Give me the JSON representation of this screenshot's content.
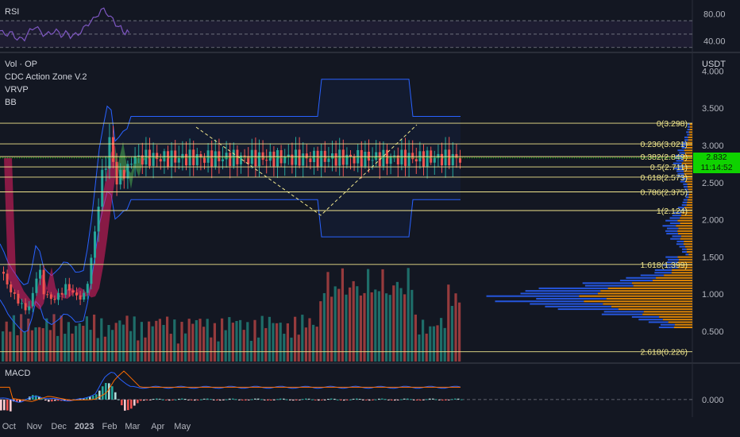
{
  "panels": {
    "rsi": {
      "label": "RSI",
      "ticks": [
        "80.00",
        "40.00"
      ]
    },
    "main": {
      "indicators": [
        "Vol · OP",
        "CDC Action Zone V.2",
        "VRVP",
        "BB"
      ],
      "currency": "USDT",
      "price_ticks": [
        "4.000",
        "3.500",
        "3.000",
        "2.500",
        "2.000",
        "1.500",
        "1.000",
        "0.500"
      ],
      "last_price": "2.832",
      "countdown": "11:14:52"
    },
    "macd": {
      "label": "MACD",
      "ticks": [
        "0.000"
      ]
    }
  },
  "time_axis": [
    "Oct",
    "Nov",
    "Dec",
    "2023",
    "Feb",
    "Mar",
    "Apr",
    "May"
  ],
  "colors": {
    "up": "#26a69a",
    "down": "#ef5350",
    "fib": "#f0e68c",
    "bb": "#2962ff",
    "cloud_up": "#4caf50",
    "cloud_down": "#e91e63",
    "vrvp_up": "#2962ff",
    "vrvp_down": "#ff9800",
    "price_tag": "#0fd200"
  },
  "chart_data": [
    {
      "type": "line",
      "panel": "RSI",
      "ylim": [
        25,
        95
      ],
      "reference_levels": [
        70,
        50,
        30
      ],
      "series": [
        {
          "x": [
            "2022-09-20",
            "2022-10-05",
            "2022-10-20",
            "2022-11-02",
            "2022-11-15",
            "2022-12-01",
            "2022-12-15",
            "2022-12-31",
            "2023-01-15",
            "2023-01-25",
            "2023-02-05",
            "2023-02-12",
            "2023-02-20",
            "2023-02-25"
          ],
          "values": [
            55,
            48,
            42,
            62,
            50,
            52,
            48,
            56,
            78,
            86,
            72,
            58,
            55,
            52
          ]
        }
      ]
    },
    {
      "type": "line",
      "panel": "Price",
      "ylim": [
        0.2,
        4.0
      ],
      "price_ticks": [
        4.0,
        3.5,
        3.0,
        2.5,
        2.0,
        1.5,
        1.0,
        0.5
      ],
      "last_price": 2.832,
      "fibonacci": [
        {
          "label": "0(3.298)",
          "value": 3.298
        },
        {
          "label": "0.236(3.021)",
          "value": 3.021
        },
        {
          "label": "0.382(2.849)",
          "value": 2.849
        },
        {
          "label": "0.5(2.711)",
          "value": 2.711
        },
        {
          "label": "0.618(2.573)",
          "value": 2.573
        },
        {
          "label": "0.786(2.375)",
          "value": 2.375
        },
        {
          "label": "1(2.124)",
          "value": 2.124
        },
        {
          "label": "1.618(1.399)",
          "value": 1.399
        },
        {
          "label": "2.618(0.226)",
          "value": 0.226
        }
      ],
      "series": [
        {
          "x": [
            "2022-09-20",
            "2022-09-25",
            "2022-10-01",
            "2022-10-08",
            "2022-10-15",
            "2022-10-22",
            "2022-10-27",
            "2022-11-01",
            "2022-11-05",
            "2022-11-10",
            "2022-11-15",
            "2022-11-22",
            "2022-12-01",
            "2022-12-08",
            "2022-12-15",
            "2022-12-22",
            "2022-12-31",
            "2023-01-05",
            "2023-01-10",
            "2023-01-15",
            "2023-01-20",
            "2023-01-25",
            "2023-02-01",
            "2023-02-05",
            "2023-02-10",
            "2023-02-15",
            "2023-02-20",
            "2023-02-25"
          ],
          "values": [
            1.3,
            1.2,
            1.05,
            0.95,
            0.85,
            0.78,
            0.9,
            1.2,
            1.38,
            1.05,
            0.98,
            0.92,
            1.0,
            1.1,
            1.05,
            0.95,
            0.98,
            1.25,
            1.6,
            2.05,
            2.5,
            2.75,
            3.1,
            2.7,
            2.4,
            2.75,
            2.55,
            2.83
          ]
        }
      ]
    },
    {
      "type": "bar",
      "panel": "MACD",
      "ylim": [
        -0.2,
        0.5
      ],
      "series": [
        {
          "x": [
            "2022-09-20",
            "2022-10-15",
            "2022-11-05",
            "2022-12-01",
            "2022-12-31",
            "2023-01-15",
            "2023-01-25",
            "2023-02-05",
            "2023-02-15",
            "2023-02-25"
          ],
          "values": [
            0.02,
            -0.03,
            0.05,
            -0.01,
            0.0,
            0.1,
            0.3,
            0.42,
            0.3,
            0.18
          ]
        }
      ]
    }
  ]
}
